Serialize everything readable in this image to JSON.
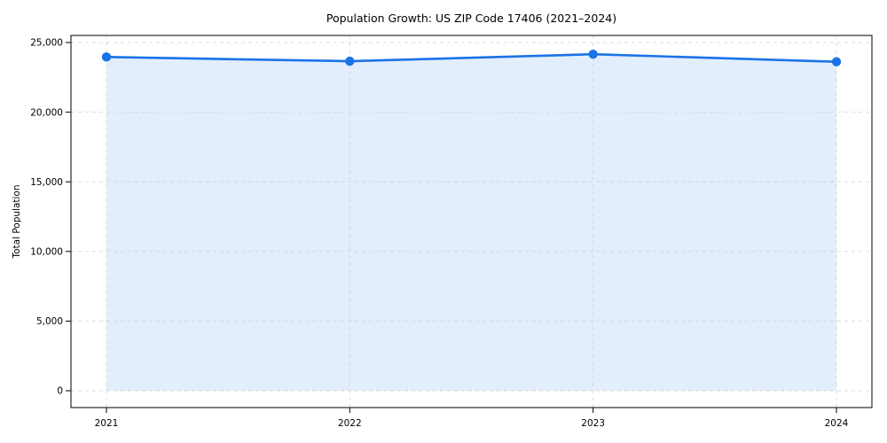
{
  "figure": {
    "title": "Population Growth: US ZIP Code 17406 (2021–2024)",
    "ylabel": "Total Population"
  },
  "chart_data": {
    "type": "area",
    "title": "Population Growth: US ZIP Code 17406 (2021–2024)",
    "xlabel": "",
    "ylabel": "Total Population",
    "categories": [
      "2021",
      "2022",
      "2023",
      "2024"
    ],
    "series": [
      {
        "name": "Total Population",
        "values": [
          23960,
          23660,
          24160,
          23620
        ]
      }
    ],
    "yticks": [
      0,
      5000,
      10000,
      15000,
      20000,
      25000
    ],
    "ylim": [
      0,
      25000
    ],
    "grid": "dashed-both-axes",
    "legend_position": "none",
    "marker": "circle",
    "colors": {
      "line": "#1a73e8",
      "fill": "#1a73e8",
      "fill_opacity": "0.12",
      "grid": "#cfcfcf",
      "spine": "#000000",
      "text": "#000000",
      "background": "#ffffff"
    }
  }
}
